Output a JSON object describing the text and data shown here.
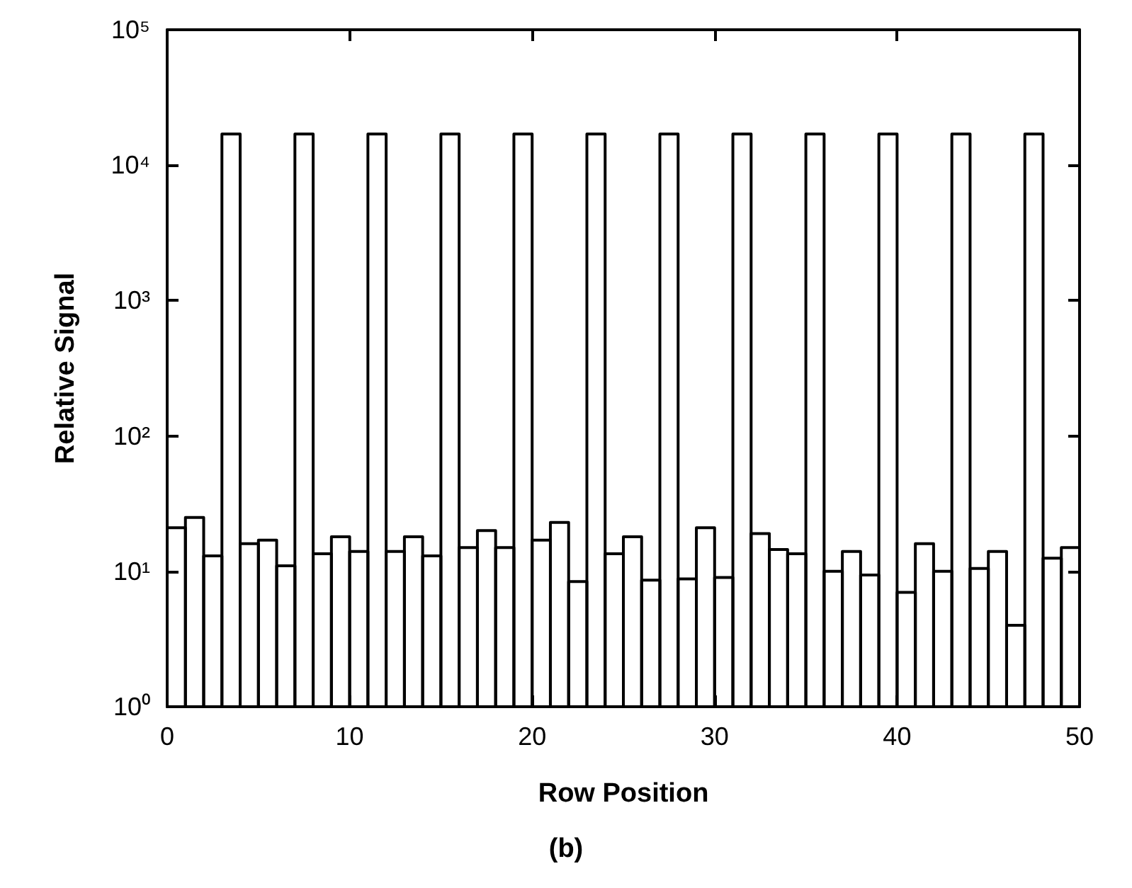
{
  "chart_data": {
    "type": "histogram",
    "xlabel": "Row Position",
    "ylabel": "Relative Signal",
    "annotations": [
      "(b)"
    ],
    "bins": [
      0,
      1,
      2,
      3,
      4,
      5,
      6,
      7,
      8,
      9,
      10,
      11,
      12,
      13,
      14,
      15,
      16,
      17,
      18,
      19,
      20,
      21,
      22,
      23,
      24,
      25,
      26,
      27,
      28,
      29,
      30,
      31,
      32,
      33,
      34,
      35,
      36,
      37,
      38,
      39,
      40,
      41,
      42,
      43,
      44,
      45,
      46,
      47,
      48,
      49,
      50
    ],
    "values": [
      21,
      25,
      13,
      17000,
      16,
      17,
      11,
      17000,
      13.5,
      18,
      14,
      17000,
      14,
      18,
      13,
      17000,
      15,
      20,
      15,
      17000,
      17,
      23,
      8.4,
      17000,
      13.5,
      18,
      8.6,
      17000,
      8.8,
      21,
      9,
      17000,
      19,
      14.5,
      13.5,
      17000,
      10,
      14,
      9.4,
      17000,
      7,
      16,
      10,
      17000,
      10.5,
      14,
      4,
      17000,
      12.5,
      15
    ],
    "color": "#000000",
    "log": "y",
    "xlim": [
      0,
      50
    ],
    "xticks": [
      0,
      10,
      20,
      30,
      40,
      50
    ],
    "ylim": [
      1,
      100000
    ],
    "yticks": [
      {
        "value": 1,
        "label": "10⁰"
      },
      {
        "value": 10,
        "label": "10¹"
      },
      {
        "value": 100,
        "label": "10²"
      },
      {
        "value": 1000,
        "label": "10³"
      },
      {
        "value": 10000,
        "label": "10⁴"
      },
      {
        "value": 100000,
        "label": "10⁵"
      }
    ],
    "grid": false
  }
}
